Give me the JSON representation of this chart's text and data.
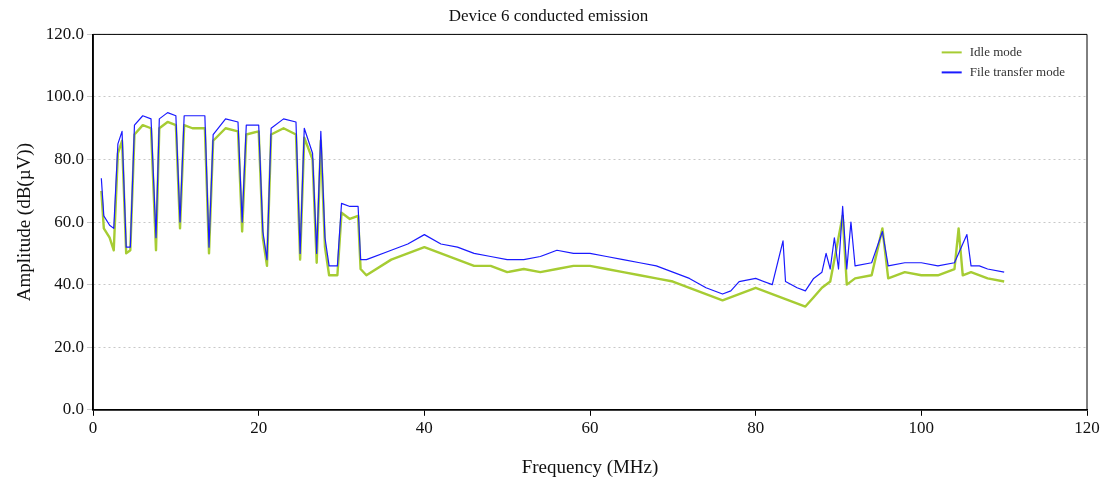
{
  "chart_data": {
    "type": "line",
    "title": "Device 6 conducted emission",
    "xlabel": "Frequency (MHz)",
    "ylabel": "Amplitude (dB(µV))",
    "xlim": [
      0,
      120
    ],
    "xticks": [
      0,
      20,
      40,
      60,
      80,
      100,
      120
    ],
    "ylim": [
      0,
      120
    ],
    "yticks": [
      {
        "value": 0,
        "label": "0.0"
      },
      {
        "value": 20,
        "label": "20.0"
      },
      {
        "value": 40,
        "label": "40.0"
      },
      {
        "value": 60,
        "label": "60.0"
      },
      {
        "value": 80,
        "label": "80.0"
      },
      {
        "value": 100,
        "label": "100.0"
      },
      {
        "value": 120,
        "label": "120.0"
      }
    ],
    "grid": "y",
    "legend": "top right",
    "marker": "none",
    "line_style": "solid",
    "series": [
      {
        "name": "Idle mode",
        "color": "#a6cc33",
        "x": [
          1.0,
          1.3,
          2.0,
          2.5,
          3.0,
          3.5,
          4.0,
          4.5,
          5,
          6,
          7,
          7.6,
          8,
          9,
          10,
          10.5,
          11,
          12,
          13.5,
          14,
          14.5,
          16,
          17.5,
          18,
          18.5,
          20,
          20.5,
          21,
          21.5,
          23,
          24.5,
          25,
          25.5,
          26.5,
          27,
          27.5,
          28,
          28.5,
          29.5,
          30,
          31,
          32,
          32.3,
          33,
          36,
          38,
          40,
          42,
          44,
          46,
          48,
          50,
          52,
          54,
          56,
          58,
          60,
          62,
          64,
          66,
          68,
          70,
          72,
          74,
          76,
          78,
          80,
          82,
          84,
          86,
          87,
          88,
          89,
          90.5,
          91,
          92,
          94,
          95.3,
          96,
          98,
          100,
          102,
          104,
          104.5,
          105,
          106,
          108,
          110
        ],
        "values": [
          70,
          58,
          55,
          51,
          82,
          86,
          50,
          51,
          88,
          91,
          90,
          51,
          90,
          92,
          91,
          58,
          91,
          90,
          90,
          50,
          86,
          90,
          89,
          57,
          88,
          89,
          55,
          46,
          88,
          90,
          88,
          48,
          87,
          80,
          47,
          86,
          52,
          43,
          43,
          63,
          61,
          62,
          45,
          43,
          48,
          50,
          52,
          50,
          48,
          46,
          46,
          44,
          45,
          44,
          45,
          46,
          46,
          45,
          44,
          43,
          42,
          41,
          39,
          37,
          35,
          37,
          39,
          37,
          35,
          33,
          36,
          39,
          41,
          62,
          40,
          42,
          43,
          58,
          42,
          44,
          43,
          43,
          45,
          58,
          43,
          44,
          42,
          41
        ]
      },
      {
        "name": "File transfer mode",
        "color": "#1a1aff",
        "x": [
          1.0,
          1.3,
          2.0,
          2.5,
          3.0,
          3.5,
          4.0,
          4.5,
          5.0,
          6,
          7,
          7.6,
          8,
          9,
          10,
          10.5,
          11,
          12,
          13.5,
          14,
          14.5,
          16,
          17.5,
          18,
          18.5,
          20,
          20.5,
          21,
          21.5,
          23,
          24.5,
          25,
          25.5,
          26.5,
          27,
          27.5,
          28,
          28.5,
          29.5,
          30,
          31,
          32,
          32.3,
          33,
          36,
          38,
          40,
          42,
          44,
          46,
          48,
          50,
          52,
          54,
          56,
          58,
          60,
          62,
          64,
          66,
          68,
          70,
          72,
          74,
          76,
          77,
          78,
          80,
          82,
          83.3,
          83.6,
          85,
          86,
          87,
          88,
          88.5,
          89,
          89.5,
          90,
          90.5,
          91,
          91.5,
          92,
          94,
          95.3,
          96,
          98,
          100,
          102,
          104,
          105.5,
          106,
          107,
          108,
          110
        ],
        "values": [
          74,
          62,
          59,
          58,
          85,
          89,
          52,
          52,
          91,
          94,
          93,
          55,
          93,
          95,
          94,
          60,
          94,
          94,
          94,
          52,
          88,
          93,
          92,
          60,
          91,
          91,
          57,
          48,
          90,
          93,
          92,
          50,
          90,
          82,
          50,
          89,
          55,
          46,
          46,
          66,
          65,
          65,
          48,
          48,
          51,
          53,
          56,
          53,
          52,
          50,
          49,
          48,
          48,
          49,
          51,
          50,
          50,
          49,
          48,
          47,
          46,
          44,
          42,
          39,
          37,
          38,
          41,
          42,
          40,
          54,
          41,
          39,
          38,
          42,
          44,
          50,
          45,
          55,
          45,
          65,
          45,
          60,
          46,
          47,
          57,
          46,
          47,
          47,
          46,
          47,
          56,
          46,
          46,
          45,
          44
        ]
      }
    ]
  }
}
